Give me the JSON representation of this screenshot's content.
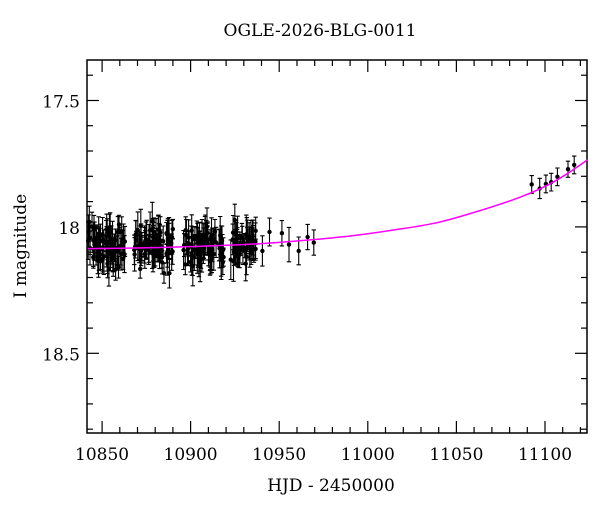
{
  "chart_data": {
    "type": "scatter",
    "title": "OGLE-2026-BLG-0011",
    "xlabel": "HJD - 2450000",
    "ylabel": "I magnitude",
    "grid": false,
    "legend": null,
    "y_axis_inverted": true,
    "x_range": [
      10841.5,
      11123.7
    ],
    "y_range": [
      17.34,
      18.815
    ],
    "x_major_ticks": [
      10850,
      10900,
      10950,
      11000,
      11050,
      11100
    ],
    "x_tick_labels": [
      "10850",
      "10900",
      "10950",
      "11000",
      "11050",
      "11100"
    ],
    "x_minor_step": 10,
    "y_major_ticks": [
      17.5,
      18.0,
      18.5
    ],
    "y_tick_labels": [
      "17.5",
      "18",
      "18.5"
    ],
    "y_minor_step": 0.1,
    "colors": {
      "background": "#ffffff",
      "frame": "#000000",
      "points": "#000000",
      "error_bars": "#000000",
      "model_curve": "#ff00ff"
    },
    "random_seed": 42,
    "baseline_clusters": [
      {
        "hjd_start": 10842.0,
        "hjd_end": 10863.0,
        "n": 72,
        "mag_mean": 18.076,
        "mag_sigma": 0.042,
        "err_min": 0.035,
        "err_max": 0.08
      },
      {
        "hjd_start": 10868.0,
        "hjd_end": 10890.0,
        "n": 76,
        "mag_mean": 18.074,
        "mag_sigma": 0.042,
        "err_min": 0.035,
        "err_max": 0.08
      },
      {
        "hjd_start": 10896.0,
        "hjd_end": 10919.0,
        "n": 78,
        "mag_mean": 18.071,
        "mag_sigma": 0.042,
        "err_min": 0.035,
        "err_max": 0.08
      },
      {
        "hjd_start": 10922.0,
        "hjd_end": 10937.0,
        "n": 48,
        "mag_mean": 18.068,
        "mag_sigma": 0.04,
        "err_min": 0.035,
        "err_max": 0.08
      }
    ],
    "mid_season_points": [
      [
        10940.5,
        18.095,
        0.06
      ],
      [
        10944.5,
        18.02,
        0.055
      ],
      [
        10951.5,
        18.025,
        0.05
      ],
      [
        10955.5,
        18.07,
        0.068
      ],
      [
        10961.0,
        18.095,
        0.055
      ],
      [
        10966.0,
        18.04,
        0.05
      ],
      [
        10969.5,
        18.062,
        0.05
      ]
    ],
    "rising_points": [
      [
        11092.5,
        17.832,
        0.035
      ],
      [
        11097.0,
        17.848,
        0.04
      ],
      [
        11100.5,
        17.83,
        0.035
      ],
      [
        11103.5,
        17.823,
        0.035
      ],
      [
        11107.0,
        17.802,
        0.035
      ],
      [
        11113.0,
        17.772,
        0.032
      ],
      [
        11116.5,
        17.755,
        0.035
      ]
    ],
    "model_curve": [
      [
        10842,
        18.086
      ],
      [
        10865,
        18.084
      ],
      [
        10890,
        18.08
      ],
      [
        10915,
        18.074
      ],
      [
        10940,
        18.066
      ],
      [
        10965,
        18.053
      ],
      [
        10990,
        18.036
      ],
      [
        11015,
        18.012
      ],
      [
        11040,
        17.982
      ],
      [
        11065,
        17.932
      ],
      [
        11085,
        17.885
      ],
      [
        11100,
        17.84
      ],
      [
        11112,
        17.792
      ],
      [
        11124,
        17.735
      ]
    ]
  }
}
